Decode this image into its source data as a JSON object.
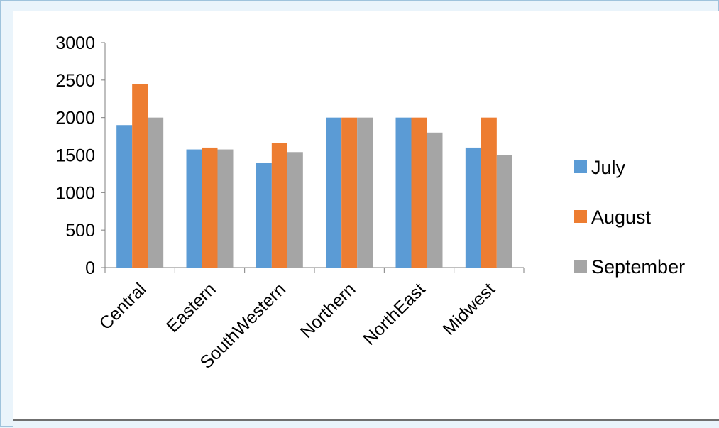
{
  "chart_data": {
    "type": "bar",
    "categories": [
      "Central",
      "Eastern",
      "SouthWestern",
      "Northern",
      "NorthEast",
      "Midwest"
    ],
    "series": [
      {
        "name": "July",
        "color": "#5b9bd5",
        "values": [
          1900,
          1575,
          1400,
          2000,
          2000,
          1600
        ]
      },
      {
        "name": "August",
        "color": "#ed7d31",
        "values": [
          2450,
          1600,
          1665,
          2000,
          2000,
          2000
        ]
      },
      {
        "name": "September",
        "color": "#a5a5a5",
        "values": [
          2000,
          1575,
          1540,
          2000,
          1800,
          1500
        ]
      }
    ],
    "yticks": [
      0,
      500,
      1000,
      1500,
      2000,
      2500,
      3000
    ],
    "ylim": [
      0,
      3000
    ],
    "grid": false,
    "legend_position": "right"
  }
}
